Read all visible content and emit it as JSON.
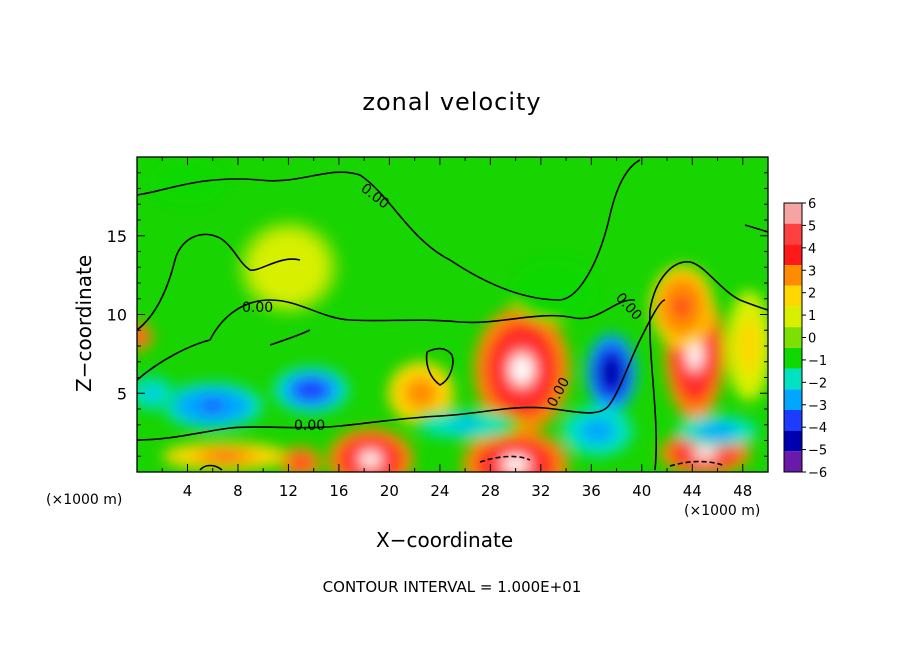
{
  "chart_data": {
    "type": "heatmap",
    "title": "zonal velocity",
    "xlabel": "X−coordinate",
    "ylabel": "Z−coordinate",
    "x_unit_label": "(×1000 m)",
    "x_unit_label_right": "(×1000 m)",
    "xlim": [
      0,
      50
    ],
    "ylim": [
      0,
      20
    ],
    "x_ticks": [
      4,
      8,
      12,
      16,
      20,
      24,
      28,
      32,
      36,
      40,
      44,
      48
    ],
    "x_tick_labels": [
      "4",
      "8",
      "12",
      "16",
      "20",
      "24",
      "28",
      "32",
      "36",
      "40",
      "44",
      "48"
    ],
    "y_ticks": [
      5,
      10,
      15
    ],
    "y_tick_labels": [
      "5",
      "10",
      "15"
    ],
    "colorbar": {
      "levels": [
        6,
        5,
        4,
        3,
        2,
        1,
        0,
        -1,
        -2,
        -3,
        -4,
        -5,
        -6
      ],
      "labels": [
        "6",
        "5",
        "4",
        "3",
        "2",
        "1",
        "0",
        "−1",
        "−2",
        "−3",
        "−4",
        "−5",
        "−6"
      ],
      "colors": [
        "#f6a3a3",
        "#ff4040",
        "#ff1a1a",
        "#ff8c00",
        "#ffd700",
        "#d8f000",
        "#7de000",
        "#10d800",
        "#00e3c0",
        "#00a6ff",
        "#1c3cff",
        "#0000b0",
        "#6a1aa8"
      ]
    },
    "contour_labels": [
      "0.00",
      "0.00",
      "0.00",
      "0.00",
      "0.00"
    ],
    "blobs": [
      {
        "x": 30.5,
        "z": 6.5,
        "rx": 3.8,
        "rz": 4.0,
        "v": 6
      },
      {
        "x": 13.8,
        "z": 5.2,
        "rx": 3.0,
        "rz": 1.5,
        "v": -4.5
      },
      {
        "x": 22.5,
        "z": 5.0,
        "rx": 2.6,
        "rz": 2.0,
        "v": 3.0
      },
      {
        "x": 18.5,
        "z": 0.8,
        "rx": 3.4,
        "rz": 2.0,
        "v": 6
      },
      {
        "x": 30.0,
        "z": 0.5,
        "rx": 4.2,
        "rz": 2.2,
        "v": 6
      },
      {
        "x": 44.2,
        "z": 7.5,
        "rx": 2.4,
        "rz": 4.2,
        "v": 5.5
      },
      {
        "x": 43.2,
        "z": 10.5,
        "rx": 2.5,
        "rz": 2.6,
        "v": 4
      },
      {
        "x": 37.6,
        "z": 6.3,
        "rx": 2.0,
        "rz": 2.5,
        "v": -5.5
      },
      {
        "x": 6.0,
        "z": 4.2,
        "rx": 4.0,
        "rz": 1.5,
        "v": -4
      },
      {
        "x": 1.2,
        "z": 5.0,
        "rx": 2.0,
        "rz": 1.2,
        "v": -2.6
      },
      {
        "x": 0.2,
        "z": 8.6,
        "rx": 1.0,
        "rz": 0.9,
        "v": 5
      },
      {
        "x": 36.5,
        "z": 2.6,
        "rx": 2.8,
        "rz": 1.6,
        "v": -3
      },
      {
        "x": 45.0,
        "z": 1.2,
        "rx": 3.6,
        "rz": 1.4,
        "v": 6
      },
      {
        "x": 46.0,
        "z": 2.6,
        "rx": 3.2,
        "rz": 1.0,
        "v": -3
      },
      {
        "x": 7.0,
        "z": 1.0,
        "rx": 5.0,
        "rz": 0.9,
        "v": 3.5
      },
      {
        "x": 13.0,
        "z": 0.6,
        "rx": 1.6,
        "rz": 1.0,
        "v": 5
      },
      {
        "x": 26.0,
        "z": 3.0,
        "rx": 4.5,
        "rz": 1.0,
        "v": -2.8
      },
      {
        "x": 33.0,
        "z": 11.5,
        "rx": 3.5,
        "rz": 2.0,
        "v": -1.3
      },
      {
        "x": 12.0,
        "z": 13.0,
        "rx": 4.0,
        "rz": 3.0,
        "v": 0.8
      },
      {
        "x": 4.0,
        "z": 18.5,
        "rx": 3.0,
        "rz": 1.5,
        "v": -1.0
      },
      {
        "x": 48.5,
        "z": 8.0,
        "rx": 1.8,
        "rz": 3.5,
        "v": 1.8
      }
    ],
    "footer": "CONTOUR INTERVAL = 1.000E+01"
  }
}
